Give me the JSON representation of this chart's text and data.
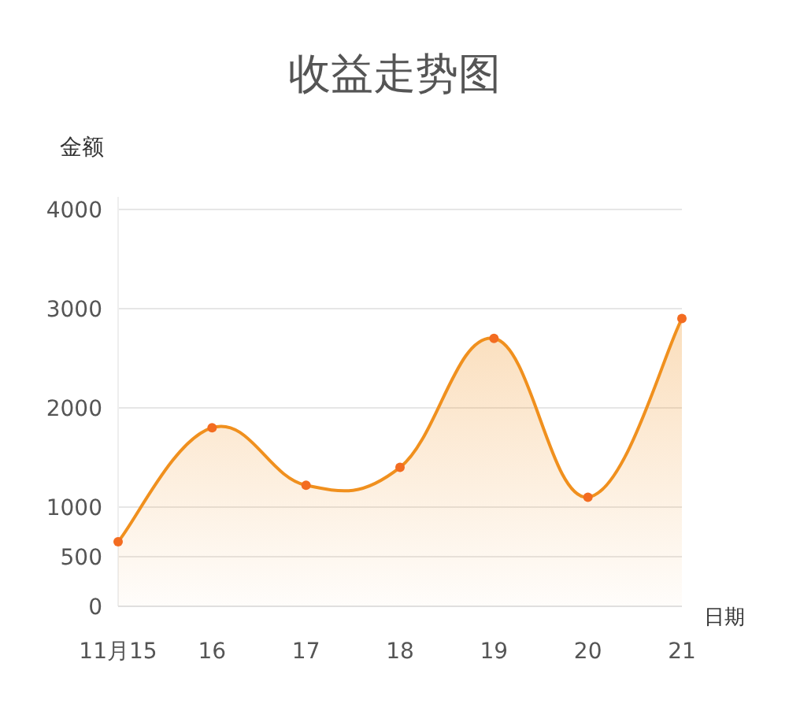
{
  "chart_data": {
    "type": "area",
    "title": "收益走势图",
    "ylabel": "金额",
    "xlabel": "日期",
    "categories": [
      "11月15",
      "16",
      "17",
      "18",
      "19",
      "20",
      "21"
    ],
    "series": [
      {
        "color": "#f0901e",
        "values": [
          650,
          1800,
          1220,
          1400,
          2700,
          1100,
          2900
        ]
      }
    ],
    "ylim": [
      0,
      4000
    ],
    "yticks": [
      0,
      500,
      1000,
      2000,
      3000,
      4000
    ],
    "grid": "y",
    "marker": "circle",
    "line_style": "solid"
  }
}
